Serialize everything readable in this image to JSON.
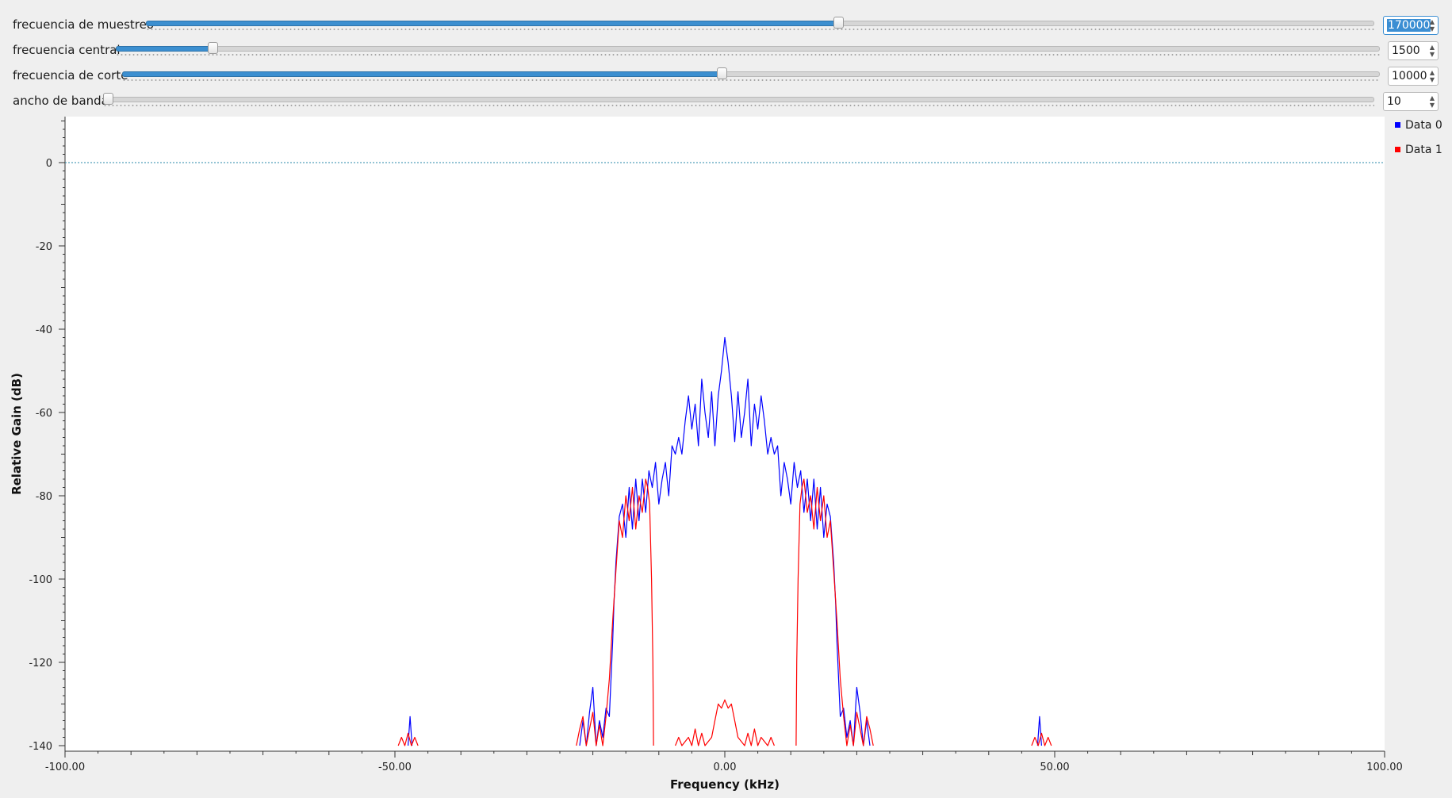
{
  "controls": [
    {
      "label": "frecuencia de muestreo",
      "value": "170000",
      "fraction": 0.564,
      "active": true
    },
    {
      "label": "frecuencia central",
      "value": "1500",
      "fraction": 0.073,
      "active": false
    },
    {
      "label": "frecuencia de corte",
      "value": "10000",
      "fraction": 0.476,
      "active": false
    },
    {
      "label": "ancho de banda",
      "value": "10",
      "fraction": 0.0,
      "active": false
    }
  ],
  "colors": {
    "slider_fill": "#3c8fd0",
    "reference_line": "#2a8aa8",
    "series_0": "#0000ff",
    "series_1": "#ff0000"
  },
  "chart_data": {
    "type": "line",
    "title": "",
    "xlabel": "Frequency (kHz)",
    "ylabel": "Relative Gain (dB)",
    "xlim": [
      -100,
      100
    ],
    "ylim": [
      -140,
      10
    ],
    "xticks": [
      -100,
      -50,
      0,
      50,
      100
    ],
    "xtick_labels": [
      "-100.00",
      "-50.00",
      "0.00",
      "50.00",
      "100.00"
    ],
    "yticks": [
      0,
      -20,
      -40,
      -60,
      -80,
      -100,
      -120,
      -140
    ],
    "ytick_labels": [
      "0",
      "-20",
      "-40",
      "-60",
      "-80",
      "-100",
      "-120",
      "-140"
    ],
    "reference_line_y": 0,
    "grid": false,
    "legend_position": "top-right",
    "series": [
      {
        "name": "Data 0",
        "color": "#0000ff",
        "points": [
          [
            -22.0,
            -140
          ],
          [
            -21.5,
            -134
          ],
          [
            -21.0,
            -140
          ],
          [
            -20.5,
            -132
          ],
          [
            -20.0,
            -126
          ],
          [
            -19.5,
            -140
          ],
          [
            -19.0,
            -134
          ],
          [
            -18.5,
            -138
          ],
          [
            -18.0,
            -131
          ],
          [
            -17.5,
            -133
          ],
          [
            -17.0,
            -115
          ],
          [
            -16.8,
            -106
          ],
          [
            -16.5,
            -96
          ],
          [
            -16.0,
            -85
          ],
          [
            -15.5,
            -82
          ],
          [
            -15.0,
            -90
          ],
          [
            -14.5,
            -78
          ],
          [
            -14.0,
            -88
          ],
          [
            -13.5,
            -76
          ],
          [
            -13.0,
            -86
          ],
          [
            -12.5,
            -76
          ],
          [
            -12.0,
            -84
          ],
          [
            -11.5,
            -74
          ],
          [
            -11.0,
            -78
          ],
          [
            -10.5,
            -72
          ],
          [
            -10.0,
            -82
          ],
          [
            -9.5,
            -76
          ],
          [
            -9.0,
            -72
          ],
          [
            -8.5,
            -80
          ],
          [
            -8.0,
            -68
          ],
          [
            -7.5,
            -70
          ],
          [
            -7.0,
            -66
          ],
          [
            -6.5,
            -70
          ],
          [
            -6.0,
            -62
          ],
          [
            -5.5,
            -56
          ],
          [
            -5.0,
            -64
          ],
          [
            -4.5,
            -58
          ],
          [
            -4.0,
            -68
          ],
          [
            -3.5,
            -52
          ],
          [
            -3.0,
            -60
          ],
          [
            -2.5,
            -66
          ],
          [
            -2.0,
            -55
          ],
          [
            -1.5,
            -68
          ],
          [
            -1.0,
            -56
          ],
          [
            -0.5,
            -50
          ],
          [
            0.0,
            -42
          ],
          [
            0.5,
            -48
          ],
          [
            1.0,
            -56
          ],
          [
            1.5,
            -67
          ],
          [
            2.0,
            -55
          ],
          [
            2.5,
            -66
          ],
          [
            3.0,
            -60
          ],
          [
            3.5,
            -52
          ],
          [
            4.0,
            -68
          ],
          [
            4.5,
            -58
          ],
          [
            5.0,
            -64
          ],
          [
            5.5,
            -56
          ],
          [
            6.0,
            -62
          ],
          [
            6.5,
            -70
          ],
          [
            7.0,
            -66
          ],
          [
            7.5,
            -70
          ],
          [
            8.0,
            -68
          ],
          [
            8.5,
            -80
          ],
          [
            9.0,
            -72
          ],
          [
            9.5,
            -76
          ],
          [
            10.0,
            -82
          ],
          [
            10.5,
            -72
          ],
          [
            11.0,
            -78
          ],
          [
            11.5,
            -74
          ],
          [
            12.0,
            -84
          ],
          [
            12.5,
            -76
          ],
          [
            13.0,
            -86
          ],
          [
            13.5,
            -76
          ],
          [
            14.0,
            -88
          ],
          [
            14.5,
            -78
          ],
          [
            15.0,
            -90
          ],
          [
            15.5,
            -82
          ],
          [
            16.0,
            -85
          ],
          [
            16.5,
            -96
          ],
          [
            16.8,
            -106
          ],
          [
            17.0,
            -115
          ],
          [
            17.5,
            -133
          ],
          [
            18.0,
            -131
          ],
          [
            18.5,
            -138
          ],
          [
            19.0,
            -134
          ],
          [
            19.5,
            -140
          ],
          [
            20.0,
            -126
          ],
          [
            20.5,
            -132
          ],
          [
            21.0,
            -140
          ],
          [
            21.5,
            -134
          ],
          [
            22.0,
            -140
          ],
          [
            -48.0,
            -140
          ],
          [
            -47.7,
            -133
          ],
          [
            -47.4,
            -140
          ],
          [
            47.4,
            -140
          ],
          [
            47.7,
            -133
          ],
          [
            48.0,
            -140
          ]
        ]
      },
      {
        "name": "Data 1",
        "color": "#ff0000",
        "points": [
          [
            -22.5,
            -140
          ],
          [
            -22.0,
            -136
          ],
          [
            -21.5,
            -133
          ],
          [
            -21.0,
            -140
          ],
          [
            -20.5,
            -136
          ],
          [
            -20.0,
            -132
          ],
          [
            -19.5,
            -140
          ],
          [
            -19.0,
            -135
          ],
          [
            -18.5,
            -140
          ],
          [
            -18.0,
            -133
          ],
          [
            -17.5,
            -124
          ],
          [
            -17.0,
            -110
          ],
          [
            -16.5,
            -98
          ],
          [
            -16.0,
            -86
          ],
          [
            -15.5,
            -90
          ],
          [
            -15.0,
            -80
          ],
          [
            -14.5,
            -86
          ],
          [
            -14.0,
            -78
          ],
          [
            -13.5,
            -88
          ],
          [
            -13.0,
            -80
          ],
          [
            -12.5,
            -84
          ],
          [
            -12.0,
            -76
          ],
          [
            -11.7,
            -78
          ],
          [
            -11.4,
            -82
          ],
          [
            -11.1,
            -100
          ],
          [
            -10.9,
            -120
          ],
          [
            -10.8,
            -140
          ],
          [
            -7.5,
            -140
          ],
          [
            -7.0,
            -138
          ],
          [
            -6.5,
            -140
          ],
          [
            -5.5,
            -138
          ],
          [
            -5.0,
            -140
          ],
          [
            -4.5,
            -136
          ],
          [
            -4.0,
            -140
          ],
          [
            -3.5,
            -137
          ],
          [
            -3.0,
            -140
          ],
          [
            -2.0,
            -138
          ],
          [
            -1.5,
            -134
          ],
          [
            -1.0,
            -130
          ],
          [
            -0.5,
            -131
          ],
          [
            0.0,
            -129
          ],
          [
            0.5,
            -131
          ],
          [
            1.0,
            -130
          ],
          [
            1.5,
            -134
          ],
          [
            2.0,
            -138
          ],
          [
            3.0,
            -140
          ],
          [
            3.5,
            -137
          ],
          [
            4.0,
            -140
          ],
          [
            4.5,
            -136
          ],
          [
            5.0,
            -140
          ],
          [
            5.5,
            -138
          ],
          [
            6.5,
            -140
          ],
          [
            7.0,
            -138
          ],
          [
            7.5,
            -140
          ],
          [
            10.8,
            -140
          ],
          [
            10.9,
            -120
          ],
          [
            11.1,
            -100
          ],
          [
            11.4,
            -82
          ],
          [
            11.7,
            -78
          ],
          [
            12.0,
            -76
          ],
          [
            12.5,
            -84
          ],
          [
            13.0,
            -80
          ],
          [
            13.5,
            -88
          ],
          [
            14.0,
            -78
          ],
          [
            14.5,
            -86
          ],
          [
            15.0,
            -80
          ],
          [
            15.5,
            -90
          ],
          [
            16.0,
            -86
          ],
          [
            16.5,
            -98
          ],
          [
            17.0,
            -110
          ],
          [
            17.5,
            -124
          ],
          [
            18.0,
            -133
          ],
          [
            18.5,
            -140
          ],
          [
            19.0,
            -135
          ],
          [
            19.5,
            -140
          ],
          [
            20.0,
            -132
          ],
          [
            20.5,
            -136
          ],
          [
            21.0,
            -140
          ],
          [
            21.5,
            -133
          ],
          [
            22.0,
            -136
          ],
          [
            22.5,
            -140
          ],
          [
            -49.5,
            -140
          ],
          [
            -49.0,
            -138
          ],
          [
            -48.5,
            -140
          ],
          [
            -48.0,
            -137
          ],
          [
            -47.5,
            -140
          ],
          [
            -47.0,
            -138
          ],
          [
            -46.5,
            -140
          ],
          [
            46.5,
            -140
          ],
          [
            47.0,
            -138
          ],
          [
            47.5,
            -140
          ],
          [
            48.0,
            -137
          ],
          [
            48.5,
            -140
          ],
          [
            49.0,
            -138
          ],
          [
            49.5,
            -140
          ]
        ]
      }
    ]
  }
}
